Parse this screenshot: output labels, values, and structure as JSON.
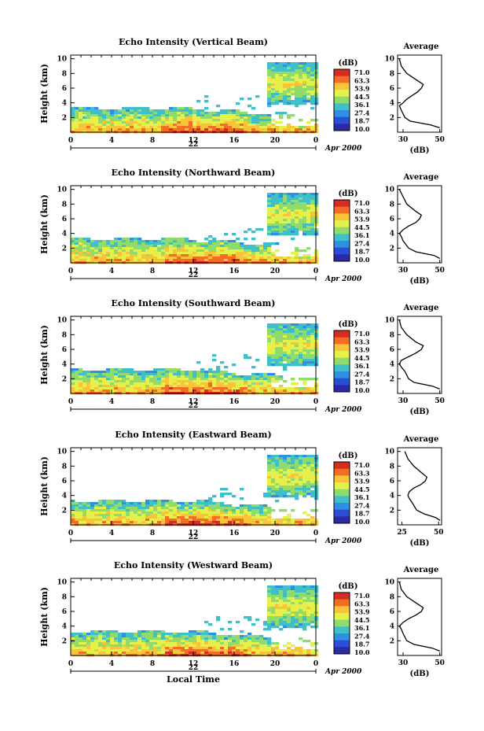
{
  "figure": {
    "xlabel": "Local Time",
    "date_label": "Apr 2000",
    "day_label": "22",
    "average_title": "Average",
    "average_xlabel": "(dB)",
    "colorbar_unit": "(dB)",
    "colorbar_ticks": [
      "71.0",
      "63.3",
      "53.9",
      "44.5",
      "36.1",
      "27.4",
      "18.7",
      "10.0"
    ],
    "colorbar_colors": [
      "#d62d20",
      "#f46d24",
      "#f9c33a",
      "#e5f04a",
      "#8fdb6b",
      "#3fc0c9",
      "#2f8fe3",
      "#2a4fd6",
      "#2a2aa6"
    ]
  },
  "chart_data": [
    {
      "type": "heatmap",
      "title": "Echo Intensity (Vertical Beam)",
      "xlabel": "",
      "ylabel": "Height (km)",
      "xlim": [
        0,
        24
      ],
      "ylim": [
        0,
        10.5
      ],
      "xticks": [
        "0",
        "4",
        "8",
        "12",
        "16",
        "20",
        "0"
      ],
      "yticks": [
        "2",
        "4",
        "6",
        "8",
        "10"
      ],
      "average_profile": {
        "xlim": [
          27,
          51
        ],
        "xticks": [
          "30",
          "50"
        ],
        "yticks": [
          "2",
          "4",
          "6",
          "8",
          "10"
        ],
        "height_km": [
          0.6,
          1,
          1.5,
          2,
          3,
          3.6,
          4,
          4.5,
          5,
          5.5,
          6,
          6.5,
          7,
          8,
          9,
          10
        ],
        "db": [
          50,
          45,
          34,
          31,
          29,
          28,
          30,
          32,
          35,
          38,
          40,
          41,
          38,
          32,
          29,
          28
        ]
      }
    },
    {
      "type": "heatmap",
      "title": "Echo Intensity (Northward Beam)",
      "xlabel": "",
      "ylabel": "Height (km)",
      "xlim": [
        0,
        24
      ],
      "ylim": [
        0,
        10.5
      ],
      "xticks": [
        "0",
        "4",
        "8",
        "12",
        "16",
        "20",
        "0"
      ],
      "yticks": [
        "2",
        "4",
        "6",
        "8",
        "10"
      ],
      "average_profile": {
        "xlim": [
          27,
          51
        ],
        "xticks": [
          "30",
          "50"
        ],
        "yticks": [
          "2",
          "4",
          "6",
          "8",
          "10"
        ],
        "height_km": [
          0.6,
          1,
          1.5,
          2,
          3,
          3.6,
          4,
          4.5,
          5,
          5.5,
          6,
          6.5,
          7,
          8,
          9,
          10
        ],
        "db": [
          50,
          47,
          37,
          33,
          30,
          29,
          28,
          30,
          33,
          37,
          39,
          40,
          37,
          32,
          30,
          28
        ]
      }
    },
    {
      "type": "heatmap",
      "title": "Echo Intensity (Southward Beam)",
      "xlabel": "",
      "ylabel": "Height (km)",
      "xlim": [
        0,
        24
      ],
      "ylim": [
        0,
        10.5
      ],
      "xticks": [
        "0",
        "4",
        "8",
        "12",
        "16",
        "20",
        "0"
      ],
      "yticks": [
        "2",
        "4",
        "6",
        "8",
        "10"
      ],
      "average_profile": {
        "xlim": [
          27,
          51
        ],
        "xticks": [
          "30",
          "50"
        ],
        "yticks": [
          "2",
          "4",
          "6",
          "8",
          "10"
        ],
        "height_km": [
          0.6,
          1,
          1.5,
          2,
          3,
          3.6,
          4,
          4.5,
          5,
          5.5,
          6,
          6.5,
          7,
          8,
          9,
          10
        ],
        "db": [
          50,
          46,
          36,
          33,
          31,
          29,
          28,
          29,
          33,
          37,
          40,
          41,
          37,
          32,
          29,
          28
        ]
      }
    },
    {
      "type": "heatmap",
      "title": "Echo Intensity (Eastward Beam)",
      "xlabel": "",
      "ylabel": "Height (km)",
      "xlim": [
        0,
        24
      ],
      "ylim": [
        0,
        10.5
      ],
      "xticks": [
        "0",
        "4",
        "8",
        "12",
        "16",
        "20",
        "0"
      ],
      "yticks": [
        "2",
        "4",
        "6",
        "8",
        "10"
      ],
      "average_profile": {
        "xlim": [
          22,
          52
        ],
        "xticks": [
          "25",
          "50"
        ],
        "yticks": [
          "2",
          "4",
          "6",
          "8",
          "10"
        ],
        "height_km": [
          0.6,
          1,
          1.5,
          2,
          3,
          3.6,
          4,
          4.5,
          5,
          5.5,
          6,
          6.5,
          7,
          8,
          9,
          10
        ],
        "db": [
          51,
          48,
          40,
          35,
          32,
          30,
          29,
          30,
          33,
          38,
          41,
          42,
          39,
          33,
          29,
          27
        ]
      }
    },
    {
      "type": "heatmap",
      "title": "Echo Intensity (Westward Beam)",
      "xlabel": "Local Time",
      "ylabel": "Height (km)",
      "xlim": [
        0,
        24
      ],
      "ylim": [
        0,
        10.5
      ],
      "xticks": [
        "0",
        "4",
        "8",
        "12",
        "16",
        "20",
        "0"
      ],
      "yticks": [
        "2",
        "4",
        "6",
        "8",
        "10"
      ],
      "average_profile": {
        "xlim": [
          27,
          51
        ],
        "xticks": [
          "30",
          "50"
        ],
        "yticks": [
          "2",
          "4",
          "6",
          "8",
          "10"
        ],
        "height_km": [
          0.6,
          1,
          1.5,
          2,
          3,
          3.6,
          4,
          4.5,
          5,
          5.5,
          6,
          6.5,
          7,
          8,
          9,
          10
        ],
        "db": [
          50,
          46,
          36,
          32,
          30,
          29,
          28,
          30,
          33,
          37,
          40,
          41,
          38,
          32,
          29,
          28
        ]
      }
    }
  ]
}
